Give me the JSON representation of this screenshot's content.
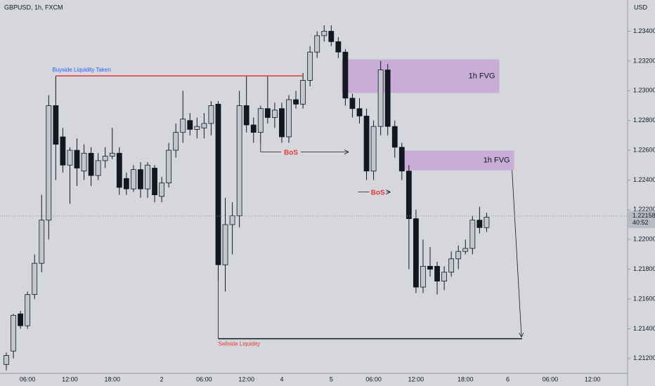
{
  "chart_data": {
    "type": "candlestick",
    "title": "GBPUSD, 1h, FXCM",
    "currency": "USD",
    "categories": [
      null,
      null,
      null,
      "06:00",
      null,
      null,
      null,
      null,
      null,
      "12:00",
      null,
      null,
      null,
      null,
      null,
      "18:00",
      null,
      null,
      null,
      null,
      null,
      null,
      "2",
      null,
      null,
      null,
      null,
      null,
      "06:00",
      null,
      null,
      null,
      null,
      null,
      "12:00",
      null,
      null,
      null,
      null,
      "4",
      null,
      null,
      null,
      null,
      null,
      null,
      "5",
      null,
      null,
      null,
      null,
      null,
      "06:00",
      null,
      null,
      null,
      null,
      null,
      "12:00",
      null,
      null,
      null,
      null,
      null,
      null,
      "18:00",
      null,
      null,
      null,
      null,
      null,
      "6",
      null,
      null,
      null,
      null,
      null,
      "06:00",
      null,
      null,
      null,
      null,
      null,
      "12:00",
      null,
      null,
      null,
      null
    ],
    "open": [
      1.2116,
      1.2125,
      1.215,
      1.2142,
      1.2163,
      1.2184,
      1.2213,
      1.229,
      1.2269,
      1.225,
      1.226,
      1.2246,
      1.2258,
      1.2243,
      1.2253,
      1.2256,
      1.2258,
      1.2241,
      1.2234,
      1.2247,
      1.2234,
      1.2248,
      1.2229,
      1.2238,
      1.226,
      1.2272,
      1.228,
      1.2274,
      1.2275,
      1.2278,
      1.2291,
      1.2183,
      1.221,
      1.2216,
      1.229,
      1.2277,
      1.2272,
      1.2288,
      1.2282,
      1.2288,
      1.2269,
      1.2294,
      1.2291,
      1.2307,
      1.2326,
      1.2337,
      1.234,
      1.2333,
      1.2326,
      1.2295,
      1.2288,
      1.2283,
      1.2246,
      1.2276,
      1.2314,
      1.2276,
      1.2262,
      1.2246,
      1.2214,
      1.2168,
      1.2182,
      1.2182,
      1.2172,
      1.2178,
      1.2187,
      1.2192,
      1.2194,
      1.2213,
      1.2208,
      null,
      null,
      null,
      null,
      null,
      null,
      null,
      null,
      null,
      null,
      null,
      null,
      null,
      null,
      null,
      null,
      null,
      null,
      null
    ],
    "high": [
      1.2124,
      1.215,
      1.2152,
      1.2165,
      1.219,
      1.223,
      1.2297,
      1.231,
      1.2275,
      1.2262,
      1.2268,
      1.2264,
      1.2262,
      1.2258,
      1.2262,
      1.2275,
      1.2262,
      1.2245,
      1.225,
      1.2252,
      1.2252,
      1.225,
      1.2242,
      1.2265,
      1.2278,
      1.23,
      1.2285,
      1.2282,
      1.2285,
      1.2293,
      1.2293,
      1.2228,
      1.2225,
      1.23,
      1.231,
      1.2282,
      1.229,
      1.231,
      1.2292,
      1.2292,
      1.2297,
      1.23,
      1.2312,
      1.233,
      1.234,
      1.2344,
      1.2344,
      1.2336,
      1.2328,
      1.2298,
      1.2295,
      1.2288,
      1.228,
      1.232,
      1.2318,
      1.228,
      1.2265,
      1.225,
      1.222,
      1.22,
      1.2195,
      1.2185,
      1.2182,
      1.2192,
      1.2196,
      1.22,
      1.2216,
      1.2222,
      1.2218,
      null,
      null,
      null,
      null,
      null,
      null,
      null,
      null,
      null,
      null,
      null,
      null,
      null,
      null,
      null,
      null,
      null,
      null,
      null
    ],
    "low": [
      1.2112,
      1.212,
      1.214,
      1.214,
      1.216,
      1.2178,
      1.22,
      1.224,
      1.2245,
      1.2224,
      1.2236,
      1.224,
      1.2236,
      1.224,
      1.2248,
      1.2254,
      1.223,
      1.223,
      1.2232,
      1.2228,
      1.2228,
      1.2225,
      1.2225,
      1.2235,
      1.2255,
      1.2265,
      1.227,
      1.2268,
      1.2268,
      1.227,
      1.2172,
      1.2165,
      1.219,
      1.2208,
      1.2272,
      1.2265,
      1.2265,
      1.2278,
      1.2275,
      1.2265,
      1.2265,
      1.2288,
      1.2288,
      1.2303,
      1.2322,
      1.2333,
      1.233,
      1.2322,
      1.229,
      1.2282,
      1.2278,
      1.224,
      1.224,
      1.227,
      1.227,
      1.2255,
      1.224,
      1.218,
      1.2164,
      1.2164,
      1.2175,
      1.2163,
      1.2166,
      1.2175,
      1.218,
      1.219,
      1.219,
      1.2204,
      1.2205,
      null,
      null,
      null,
      null,
      null,
      null,
      null,
      null,
      null,
      null,
      null,
      null,
      null,
      null,
      null,
      null,
      null,
      null,
      null
    ],
    "close": [
      1.2122,
      1.2149,
      1.2142,
      1.2163,
      1.2184,
      1.2213,
      1.229,
      1.2264,
      1.225,
      1.226,
      1.2248,
      1.2258,
      1.2243,
      1.2253,
      1.2256,
      1.2258,
      1.2235,
      1.2234,
      1.2247,
      1.2234,
      1.225,
      1.223,
      1.2238,
      1.226,
      1.2272,
      1.2281,
      1.2274,
      1.2276,
      1.2278,
      1.229,
      1.2183,
      1.221,
      1.2216,
      1.229,
      1.2277,
      1.2272,
      1.2288,
      1.2282,
      1.2287,
      1.2269,
      1.2294,
      1.2291,
      1.2307,
      1.2326,
      1.2337,
      1.234,
      1.2333,
      1.2326,
      1.2295,
      1.2288,
      1.2283,
      1.2246,
      1.2276,
      1.2314,
      1.2276,
      1.2262,
      1.2246,
      1.2214,
      1.2168,
      1.2182,
      1.218,
      1.2172,
      1.2178,
      1.2187,
      1.2192,
      1.2194,
      1.2213,
      1.2208,
      1.2215,
      null,
      null,
      null,
      null,
      null,
      null,
      null,
      null,
      null,
      null,
      null,
      null,
      null,
      null,
      null,
      null,
      null,
      null,
      null
    ],
    "up_color": "#c3c6cd",
    "down_color": "#131722",
    "ylim": [
      1.211,
      1.2361
    ],
    "yticks": [
      {
        "value": 1.212,
        "label": "1.21200"
      },
      {
        "value": 1.214,
        "label": "1.21400"
      },
      {
        "value": 1.216,
        "label": "1.21600"
      },
      {
        "value": 1.218,
        "label": "1.21800"
      },
      {
        "value": 1.22,
        "label": "1.22000"
      },
      {
        "value": 1.222,
        "label": "1.22200"
      },
      {
        "value": 1.224,
        "label": "1.22400"
      },
      {
        "value": 1.226,
        "label": "1.22600"
      },
      {
        "value": 1.228,
        "label": "1.22800"
      },
      {
        "value": 1.23,
        "label": "1.23000"
      },
      {
        "value": 1.232,
        "label": "1.23200"
      },
      {
        "value": 1.234,
        "label": "1.23400"
      }
    ],
    "last_price": {
      "value": 1.22158,
      "label": "1.22158"
    },
    "countdown": "40:52",
    "annotations": {
      "buyside": {
        "text": "Buyside Liquidity Taken",
        "level": 1.231
      },
      "sellside": {
        "text": "Sellside Liquidity",
        "level": 1.21333
      },
      "fvg": [
        {
          "text": "1h FVG",
          "top": 1.23211,
          "bottom": 1.22985
        },
        {
          "text": "1h FVG",
          "top": 1.22598,
          "bottom": 1.22465
        }
      ],
      "bos": [
        {
          "text": "BoS",
          "level": 1.22588
        },
        {
          "text": "BoS",
          "level": 1.22319
        }
      ]
    }
  }
}
